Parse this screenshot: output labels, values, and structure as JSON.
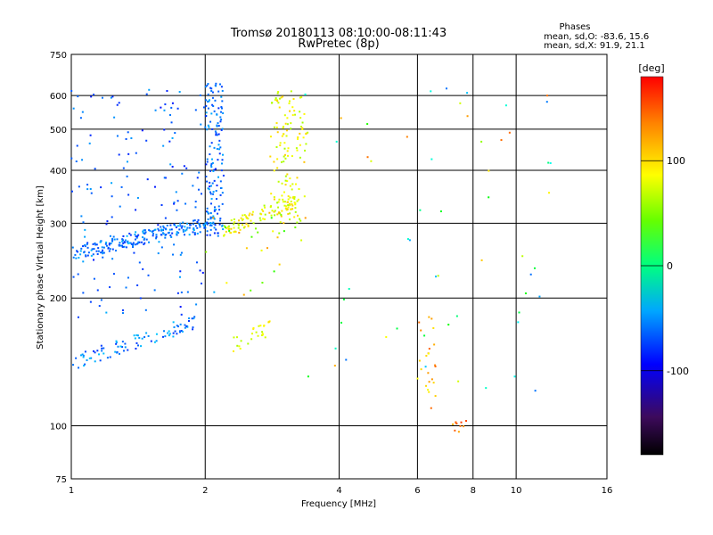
{
  "header": {
    "title_line1": "Tromsø 20180113 08:10:00-08:11:43",
    "title_line2": "RwPretec (8p)"
  },
  "phases": {
    "title": "Phases",
    "line1": "mean, sd,O: -83.6, 15.6",
    "line2": "mean, sd,X:  91.9, 21.1"
  },
  "chart_data": {
    "type": "scatter",
    "title": "Tromsø 20180113 08:10:00-08:11:43",
    "subtitle": "RwPretec (8p)",
    "xlabel": "Frequency [MHz]",
    "ylabel": "Stationary phase Virtual Height [km]",
    "xscale": "log2",
    "yscale": "log",
    "xlim": [
      1,
      16
    ],
    "ylim": [
      75,
      750
    ],
    "grid": true,
    "x_ticks": [
      {
        "value": 1,
        "label": "1"
      },
      {
        "value": 2,
        "label": "2"
      },
      {
        "value": 4,
        "label": "4"
      },
      {
        "value": 6,
        "label": "6"
      },
      {
        "value": 8,
        "label": "8"
      },
      {
        "value": 10,
        "label": "10"
      },
      {
        "value": 16,
        "label": "16"
      }
    ],
    "y_ticks": [
      {
        "value": 75,
        "label": "75"
      },
      {
        "value": 100,
        "label": "100"
      },
      {
        "value": 200,
        "label": "200"
      },
      {
        "value": 300,
        "label": "300"
      },
      {
        "value": 400,
        "label": "400"
      },
      {
        "value": 500,
        "label": "500"
      },
      {
        "value": 600,
        "label": "600"
      },
      {
        "value": 750,
        "label": "750"
      }
    ],
    "colorbar": {
      "label": "[deg]",
      "ticks": [
        {
          "value": 100,
          "label": "100"
        },
        {
          "value": 0,
          "label": "0"
        },
        {
          "value": -100,
          "label": "-100"
        }
      ],
      "range": [
        -180,
        180
      ]
    },
    "series": [
      {
        "x_range": [
          1.0,
          2.1
        ],
        "y_min": 255,
        "y_max": 300,
        "count": 220,
        "phase_range": [
          -125,
          -80
        ],
        "kind": "trace"
      },
      {
        "x_range": [
          1.0,
          1.9
        ],
        "y_min": 140,
        "y_max": 175,
        "count": 90,
        "phase_range": [
          -125,
          -75
        ],
        "kind": "trace"
      },
      {
        "x_range": [
          1.0,
          2.1
        ],
        "y_min": 180,
        "y_max": 620,
        "count": 160,
        "phase_range": [
          -135,
          -85
        ],
        "kind": "sparse"
      },
      {
        "x_range": [
          2.0,
          2.2
        ],
        "y_min": 280,
        "y_max": 640,
        "count": 140,
        "phase_range": [
          -130,
          -85
        ],
        "kind": "column"
      },
      {
        "x_range": [
          2.2,
          3.2
        ],
        "y_min": 290,
        "y_max": 340,
        "count": 100,
        "phase_range": [
          70,
          120
        ],
        "kind": "trace"
      },
      {
        "x_range": [
          2.8,
          3.4
        ],
        "y_min": 300,
        "y_max": 620,
        "count": 120,
        "phase_range": [
          70,
          120
        ],
        "kind": "column"
      },
      {
        "x_range": [
          2.3,
          2.8
        ],
        "y_min": 155,
        "y_max": 170,
        "count": 26,
        "phase_range": [
          70,
          115
        ],
        "kind": "trace"
      },
      {
        "x_range": [
          6.0,
          6.6
        ],
        "y_min": 110,
        "y_max": 185,
        "count": 24,
        "phase_range": [
          95,
          150
        ],
        "kind": "column"
      },
      {
        "x_range": [
          7.2,
          7.9
        ],
        "y_min": 98,
        "y_max": 105,
        "count": 10,
        "phase_range": [
          120,
          175
        ],
        "kind": "trace"
      },
      {
        "x_range": [
          3.3,
          12.0
        ],
        "y_min": 120,
        "y_max": 640,
        "count": 55,
        "phase_range": [
          -120,
          150
        ],
        "kind": "sparse"
      },
      {
        "x_range": [
          2.0,
          3.4
        ],
        "y_min": 200,
        "y_max": 320,
        "count": 30,
        "phase_range": [
          30,
          140
        ],
        "kind": "sparse"
      }
    ]
  }
}
